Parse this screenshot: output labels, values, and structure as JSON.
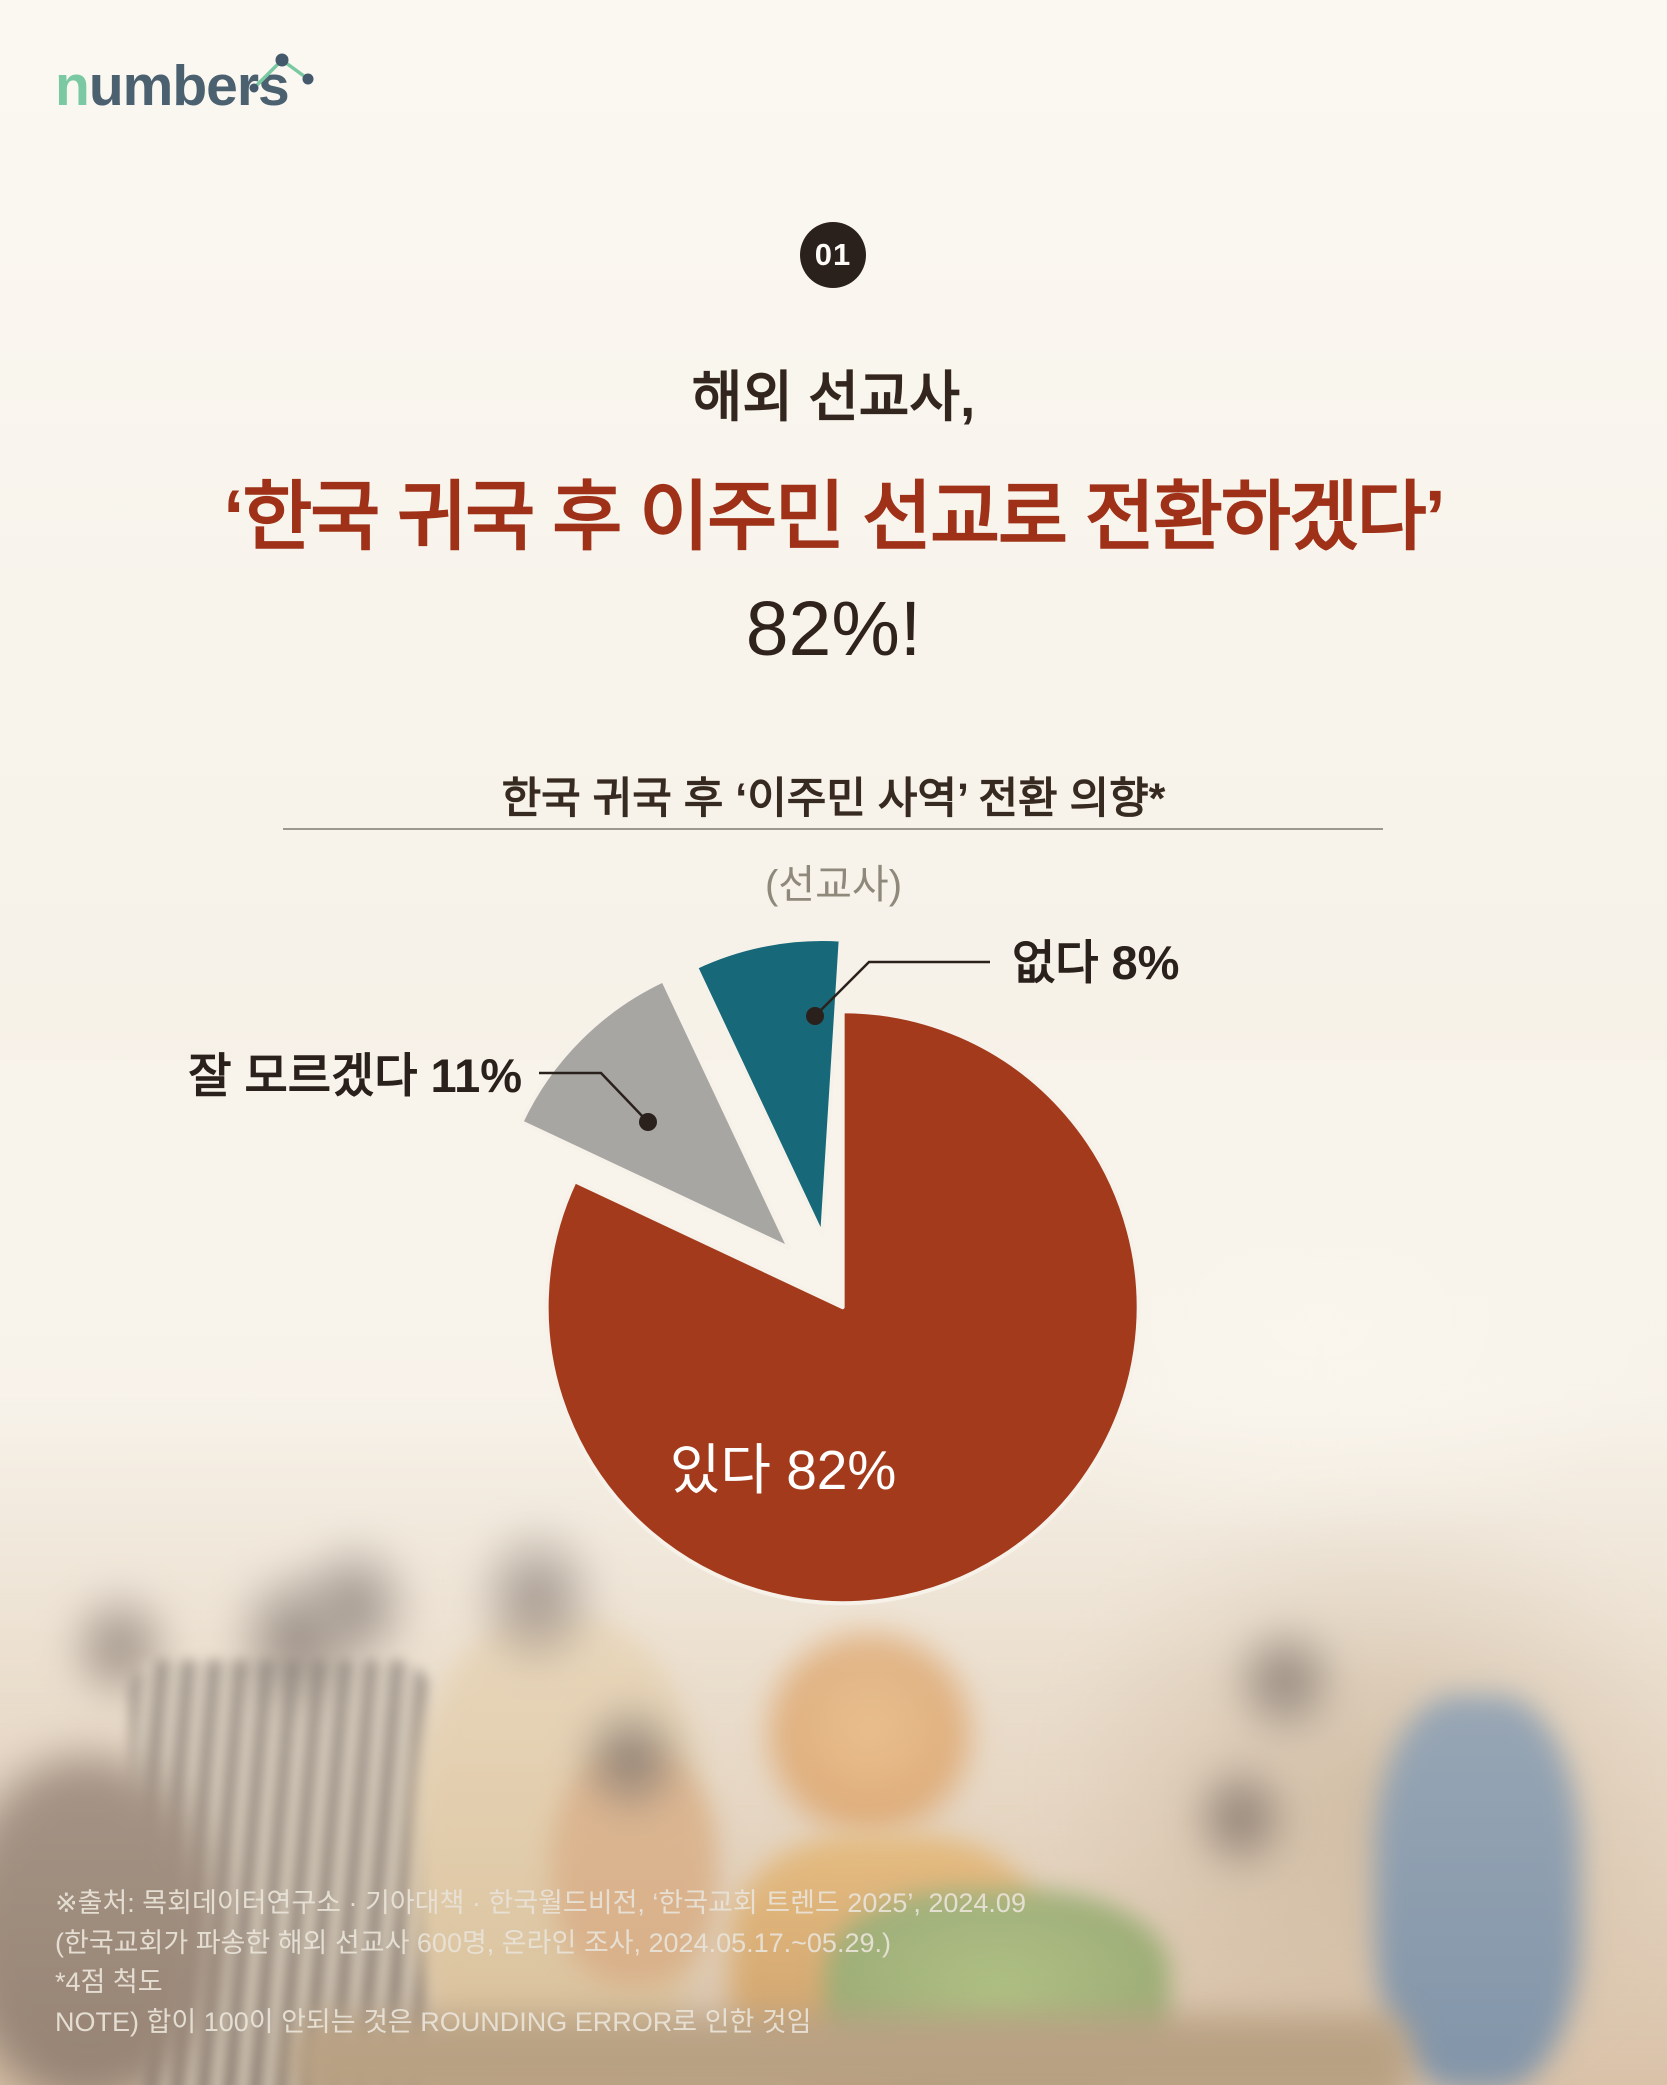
{
  "logo": {
    "text_green": "n",
    "text_dark": "umbers",
    "sparkline_icon": "line-chart-sparkline"
  },
  "badge": {
    "number": "01"
  },
  "title": {
    "line1": "해외 선교사,",
    "line2": "‘한국 귀국 후 이주민 선교로 전환하겠다’",
    "line3": "82%!"
  },
  "chart": {
    "title": "한국 귀국 후 ‘이주민 사역’ 전환 의향*",
    "subtitle": "(선교사)"
  },
  "chart_data": {
    "type": "pie",
    "title": "한국 귀국 후 ‘이주민 사역’ 전환 의향*",
    "subtitle": "(선교사)",
    "unit": "%",
    "start_angle_deg": 0,
    "direction": "clockwise",
    "slices": [
      {
        "label": "있다",
        "value": 82,
        "color": "#a43a1c",
        "explode": 18,
        "label_placement": "inside"
      },
      {
        "label": "잘 모르겠다",
        "value": 11,
        "color": "#a8a6a3",
        "explode": 62,
        "label_placement": "callout-left"
      },
      {
        "label": "없다",
        "value": 8,
        "color": "#17697a",
        "explode": 58,
        "label_placement": "callout-right"
      }
    ],
    "legend_position": "none",
    "grid": false
  },
  "footer": {
    "lines": [
      "※출처: 목회데이터연구소 · 기아대책 · 한국월드비전, ‘한국교회 트렌드 2025’, 2024.09",
      "(한국교회가 파송한 해외 선교사 600명, 온라인 조사, 2024.05.17.~05.29.)",
      "*4점 척도",
      "NOTE) 합이 100이 안되는 것은 ROUNDING ERROR로 인한 것임"
    ]
  },
  "colors": {
    "background": "#f8f4ec",
    "headline_red": "#9e3118",
    "pie_red": "#a43a1c",
    "pie_gray": "#a8a6a3",
    "pie_teal": "#17697a",
    "text_dark": "#33261e",
    "badge_bg": "#2b211c",
    "subtitle_gray": "#8f897c",
    "rule_gray": "#9b9892",
    "callout_line": "#2b211c",
    "inside_label_text": "#ffffff",
    "footer_text": "#e8e2d6",
    "logo_green": "#7ac9a3",
    "logo_slate": "#4b6170"
  }
}
